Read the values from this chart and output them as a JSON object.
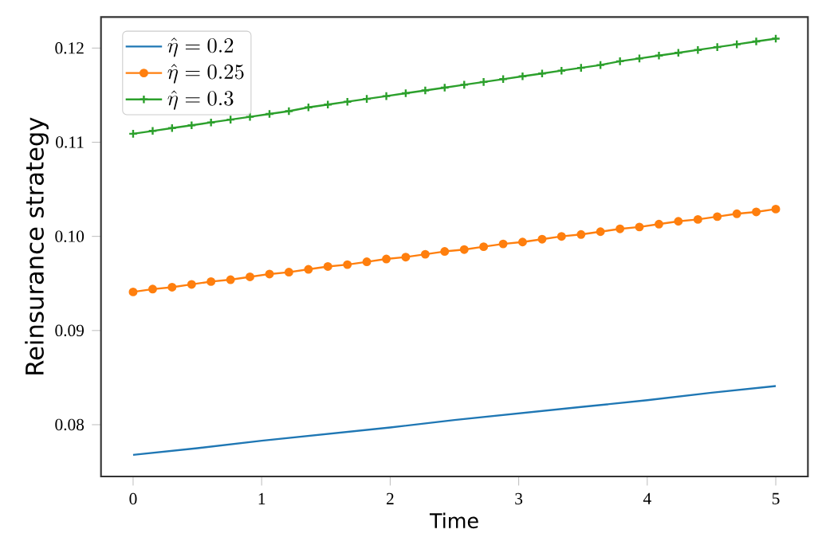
{
  "chart_data": {
    "type": "line",
    "xlabel": "Time",
    "ylabel": "Reinsurance strategy",
    "xlim": [
      -0.25,
      5.25
    ],
    "ylim": [
      0.0745,
      0.1233
    ],
    "xticks": [
      0,
      1,
      2,
      3,
      4,
      5
    ],
    "yticks": [
      0.08,
      0.09,
      {
        "value": 0.1,
        "label": "0.10"
      },
      0.11,
      0.12
    ],
    "legend": "top left",
    "line_style": "solid",
    "series": [
      {
        "name": "\\hat{\\eta} = 0.2",
        "color": "#1f77b4",
        "marker": "none",
        "x": [
          0,
          0.5,
          1,
          1.5,
          2,
          2.5,
          3,
          3.5,
          4,
          4.5,
          5
        ],
        "values": [
          0.0768,
          0.0775,
          0.0783,
          0.079,
          0.0797,
          0.0805,
          0.0812,
          0.0819,
          0.0826,
          0.0834,
          0.0841
        ]
      },
      {
        "name": "\\hat{\\eta} = 0.25",
        "color": "#ff7f0e",
        "marker": "circle",
        "x": [
          0,
          0.152,
          0.303,
          0.455,
          0.606,
          0.758,
          0.909,
          1.061,
          1.212,
          1.364,
          1.515,
          1.667,
          1.818,
          1.97,
          2.121,
          2.273,
          2.424,
          2.576,
          2.727,
          2.879,
          3.03,
          3.182,
          3.333,
          3.485,
          3.636,
          3.788,
          3.939,
          4.091,
          4.242,
          4.394,
          4.545,
          4.697,
          4.848,
          5
        ],
        "values": [
          0.0941,
          0.0944,
          0.0946,
          0.0949,
          0.0952,
          0.0954,
          0.0957,
          0.096,
          0.0962,
          0.0965,
          0.0968,
          0.097,
          0.0973,
          0.0976,
          0.0978,
          0.0981,
          0.0984,
          0.0986,
          0.0989,
          0.0992,
          0.0994,
          0.0997,
          0.1,
          0.1002,
          0.1005,
          0.1008,
          0.101,
          0.1013,
          0.1016,
          0.1018,
          0.1021,
          0.1024,
          0.1026,
          0.1029
        ]
      },
      {
        "name": "\\hat{\\eta} = 0.3",
        "color": "#2ca02c",
        "marker": "cross",
        "x": [
          0,
          0.152,
          0.303,
          0.455,
          0.606,
          0.758,
          0.909,
          1.061,
          1.212,
          1.364,
          1.515,
          1.667,
          1.818,
          1.97,
          2.121,
          2.273,
          2.424,
          2.576,
          2.727,
          2.879,
          3.03,
          3.182,
          3.333,
          3.485,
          3.636,
          3.788,
          3.939,
          4.091,
          4.242,
          4.394,
          4.545,
          4.697,
          4.848,
          5
        ],
        "values": [
          0.1109,
          0.1112,
          0.1115,
          0.1118,
          0.1121,
          0.1124,
          0.1127,
          0.113,
          0.1133,
          0.1137,
          0.114,
          0.1143,
          0.1146,
          0.1149,
          0.1152,
          0.1155,
          0.1158,
          0.1161,
          0.1164,
          0.1167,
          0.117,
          0.1173,
          0.1176,
          0.1179,
          0.1182,
          0.1186,
          0.1189,
          0.1192,
          0.1195,
          0.1198,
          0.1201,
          0.1204,
          0.1207,
          0.121
        ]
      }
    ]
  }
}
